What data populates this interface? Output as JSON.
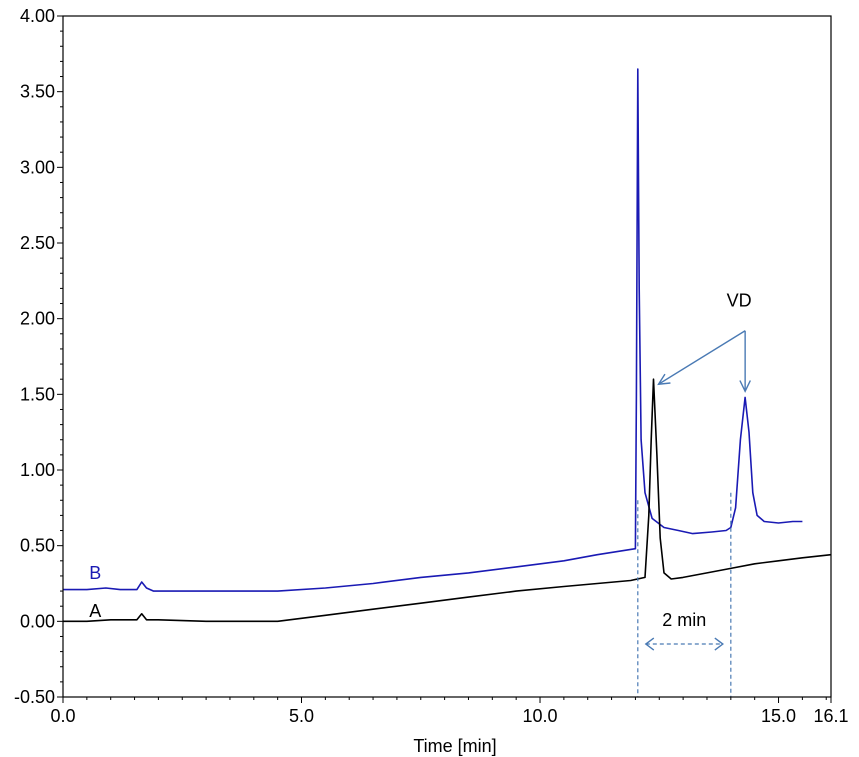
{
  "chart_data": {
    "type": "line",
    "title": "",
    "xlabel": "Time [min]",
    "ylabel": "",
    "xlim": [
      0,
      16.1
    ],
    "ylim": [
      -0.5,
      4.0
    ],
    "grid": false,
    "x_tick_labels": [
      {
        "value": 0,
        "label": "0.0"
      },
      {
        "value": 5,
        "label": "5.0"
      },
      {
        "value": 10,
        "label": "10.0"
      },
      {
        "value": 15,
        "label": "15.0"
      },
      {
        "value": 16.1,
        "label": "16.1"
      }
    ],
    "y_tick_labels": [
      {
        "value": -0.5,
        "label": "-0.50"
      },
      {
        "value": 0,
        "label": "0.00"
      },
      {
        "value": 0.5,
        "label": "0.50"
      },
      {
        "value": 1.0,
        "label": "1.00"
      },
      {
        "value": 1.5,
        "label": "1.50"
      },
      {
        "value": 2.0,
        "label": "2.00"
      },
      {
        "value": 2.5,
        "label": "2.50"
      },
      {
        "value": 3.0,
        "label": "3.00"
      },
      {
        "value": 3.5,
        "label": "3.50"
      },
      {
        "value": 4.0,
        "label": "4.00"
      }
    ],
    "series": [
      {
        "name": "B",
        "color": "#1a1ab4",
        "x": [
          0.0,
          0.5,
          0.9,
          1.2,
          1.55,
          1.65,
          1.75,
          1.9,
          2.5,
          3.5,
          4.5,
          5.5,
          6.5,
          7.5,
          8.5,
          9.5,
          10.5,
          11.2,
          11.8,
          12.0,
          12.02,
          12.05,
          12.08,
          12.12,
          12.2,
          12.35,
          12.6,
          12.9,
          13.2,
          13.6,
          13.9,
          14.0,
          14.1,
          14.2,
          14.3,
          14.38,
          14.46,
          14.55,
          14.7,
          15.0,
          15.3,
          15.5
        ],
        "y": [
          0.21,
          0.21,
          0.22,
          0.21,
          0.21,
          0.26,
          0.22,
          0.2,
          0.2,
          0.2,
          0.2,
          0.22,
          0.25,
          0.29,
          0.32,
          0.36,
          0.4,
          0.44,
          0.47,
          0.48,
          1.5,
          3.65,
          2.2,
          1.2,
          0.85,
          0.68,
          0.62,
          0.6,
          0.58,
          0.59,
          0.6,
          0.62,
          0.75,
          1.2,
          1.48,
          1.25,
          0.85,
          0.7,
          0.66,
          0.65,
          0.66,
          0.66
        ]
      },
      {
        "name": "A",
        "color": "#000000",
        "x": [
          0.0,
          0.5,
          1.0,
          1.55,
          1.65,
          1.75,
          2.0,
          3.0,
          4.5,
          5.5,
          6.5,
          7.5,
          8.5,
          9.5,
          10.5,
          11.2,
          11.9,
          12.2,
          12.28,
          12.33,
          12.38,
          12.45,
          12.52,
          12.6,
          12.75,
          13.0,
          13.5,
          14.0,
          14.5,
          15.0,
          15.5,
          16.1
        ],
        "y": [
          0.0,
          0.0,
          0.01,
          0.01,
          0.05,
          0.01,
          0.01,
          0.0,
          0.0,
          0.04,
          0.08,
          0.12,
          0.16,
          0.2,
          0.23,
          0.25,
          0.27,
          0.29,
          0.7,
          1.2,
          1.6,
          1.1,
          0.55,
          0.32,
          0.28,
          0.29,
          0.32,
          0.35,
          0.38,
          0.4,
          0.42,
          0.44
        ]
      }
    ],
    "annotations": [
      {
        "text": "VD",
        "color": "#000000"
      },
      {
        "text": "2 min",
        "color": "#000000",
        "span_x": [
          12.05,
          14.0
        ]
      },
      {
        "text": "B",
        "color": "#1a1ab4"
      },
      {
        "text": "A",
        "color": "#000000"
      }
    ],
    "annotation_color": "#4a7ab4"
  }
}
